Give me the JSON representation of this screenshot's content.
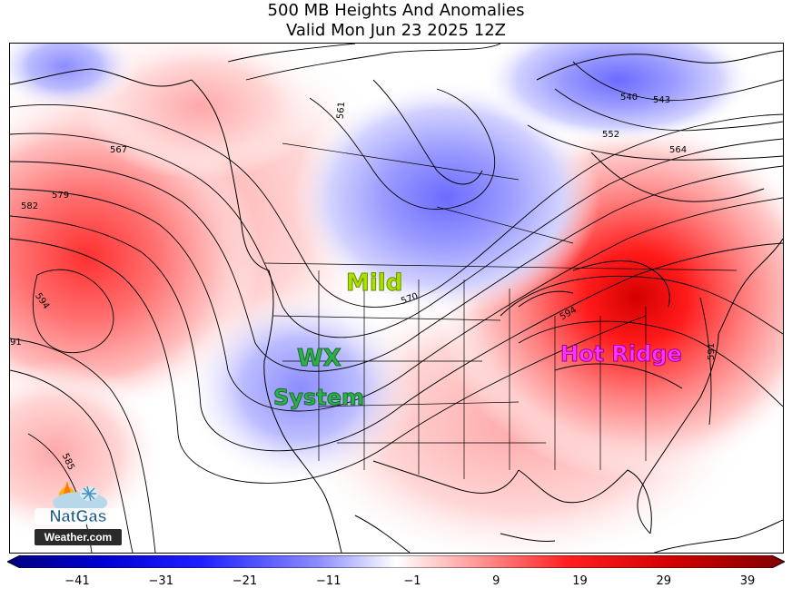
{
  "title": {
    "line1": "500 MB Heights And Anomalies",
    "line2": "Valid Mon Jun 23 2025 12Z"
  },
  "contour_labels": [
    "561",
    "567",
    "579",
    "582",
    "594",
    "91",
    "585",
    "570",
    "540",
    "543",
    "552",
    "564",
    "591",
    "594"
  ],
  "annotations": {
    "mild": "Mild",
    "wx": "WX",
    "system": "System",
    "hot_ridge": "Hot Ridge"
  },
  "colorbar": {
    "ticks": [
      "−41",
      "−31",
      "−21",
      "−11",
      "−1",
      "9",
      "19",
      "29",
      "39"
    ],
    "range": [
      -46,
      44
    ],
    "colors": {
      "min": "#00007f",
      "mid": "#ffffff",
      "max": "#7f0000"
    }
  },
  "logo": {
    "line1": "NatGas",
    "line2": "Weather.com"
  }
}
